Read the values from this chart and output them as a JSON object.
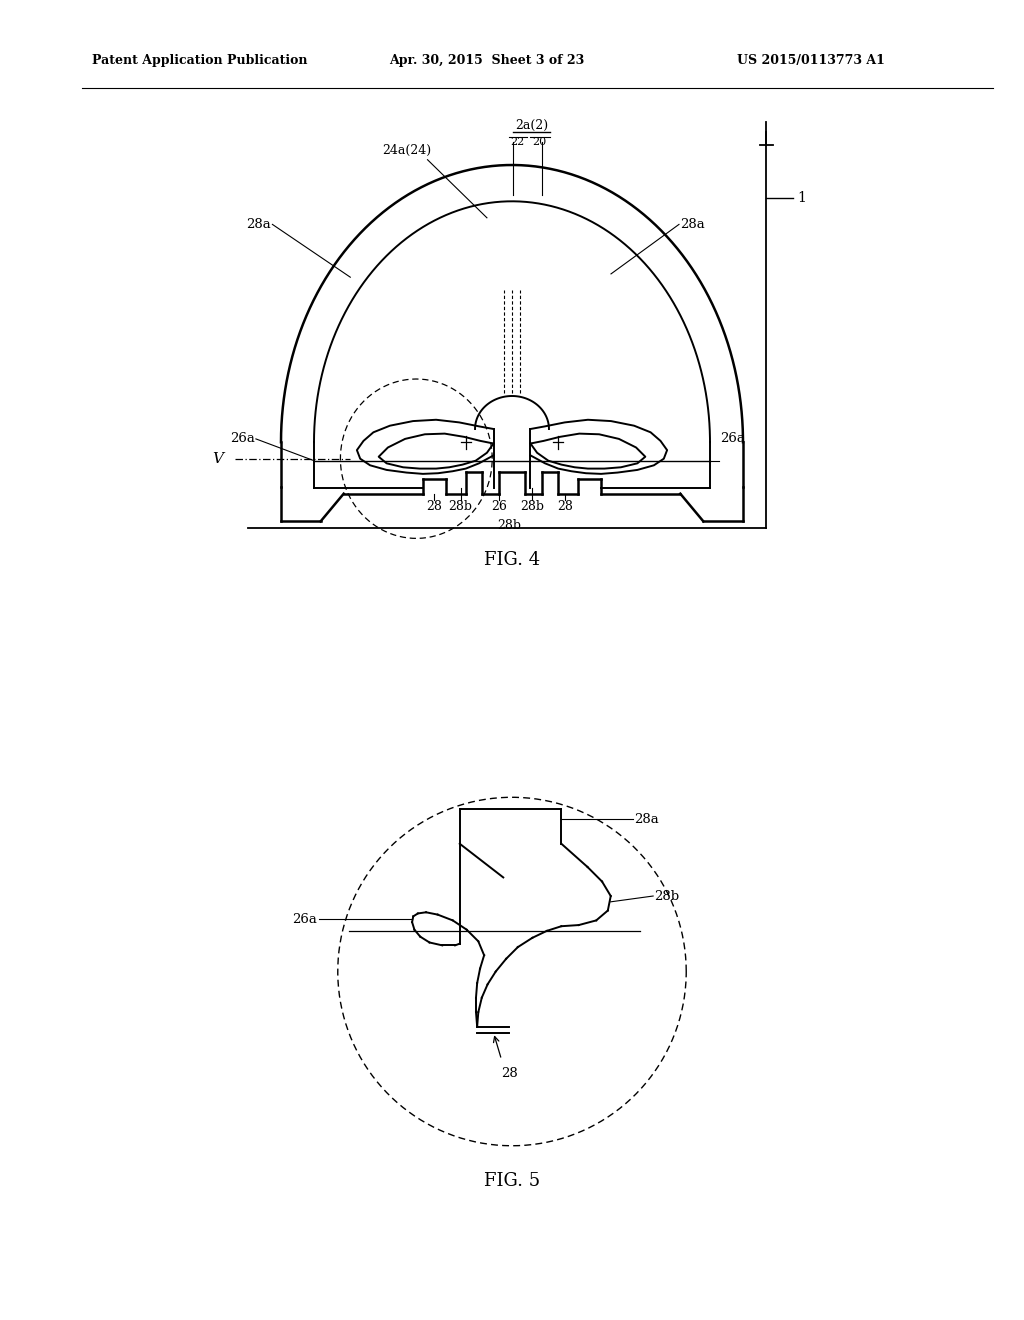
{
  "bg_color": "#ffffff",
  "header_text": "Patent Application Publication",
  "header_date": "Apr. 30, 2015  Sheet 3 of 23",
  "header_patent": "US 2015/0113773 A1",
  "fig4_label": "FIG. 4",
  "fig5_label": "FIG. 5",
  "text_color": "#000000",
  "line_color": "#000000"
}
